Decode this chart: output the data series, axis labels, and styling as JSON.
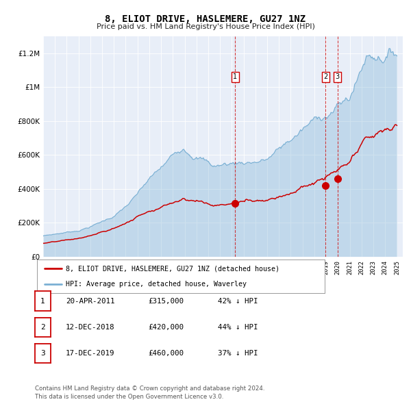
{
  "title": "8, ELIOT DRIVE, HASLEMERE, GU27 1NZ",
  "subtitle": "Price paid vs. HM Land Registry's House Price Index (HPI)",
  "ylim": [
    0,
    1300000
  ],
  "yticks": [
    0,
    200000,
    400000,
    600000,
    800000,
    1000000,
    1200000
  ],
  "hpi_color": "#7ab0d4",
  "hpi_fill_alpha": 0.35,
  "red_color": "#cc0000",
  "background_color": "#e8eef8",
  "trans_dates": [
    2011.29,
    2018.95,
    2019.96
  ],
  "trans_prices": [
    315000,
    420000,
    460000
  ],
  "trans_labels": [
    "1",
    "2",
    "3"
  ],
  "legend_line1": "8, ELIOT DRIVE, HASLEMERE, GU27 1NZ (detached house)",
  "legend_line2": "HPI: Average price, detached house, Waverley",
  "table_rows": [
    {
      "num": "1",
      "date": "20-APR-2011",
      "price": "£315,000",
      "pct": "42% ↓ HPI"
    },
    {
      "num": "2",
      "date": "12-DEC-2018",
      "price": "£420,000",
      "pct": "44% ↓ HPI"
    },
    {
      "num": "3",
      "date": "17-DEC-2019",
      "price": "£460,000",
      "pct": "37% ↓ HPI"
    }
  ],
  "footer": "Contains HM Land Registry data © Crown copyright and database right 2024.\nThis data is licensed under the Open Government Licence v3.0.",
  "x_start_year": 1995,
  "x_end_year": 2025
}
